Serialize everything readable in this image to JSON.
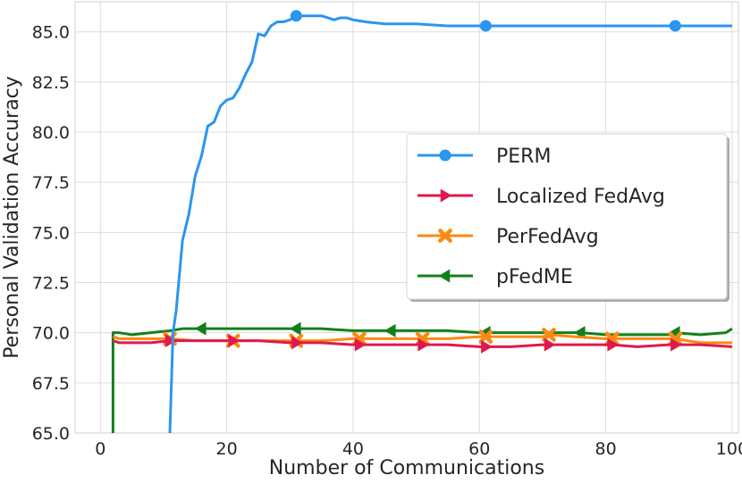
{
  "chart_data": {
    "type": "line",
    "title": "",
    "xlabel": "Number of Communications",
    "ylabel": "Personal Validation Accuracy",
    "xlim": [
      -4,
      101
    ],
    "ylim": [
      65.0,
      86.5
    ],
    "xticks": [
      0,
      20,
      40,
      60,
      80,
      100
    ],
    "yticks": [
      65.0,
      67.5,
      70.0,
      72.5,
      75.0,
      77.5,
      80.0,
      82.5,
      85.0
    ],
    "grid": true,
    "legend_position": "center-right",
    "series": [
      {
        "name": "PERM",
        "color": "#2b95f0",
        "marker": "circle",
        "marker_every": [
          31,
          61,
          91
        ],
        "x": [
          11,
          11.5,
          12,
          13,
          14,
          15,
          16,
          17,
          18,
          19,
          20,
          21,
          22,
          23,
          24,
          25,
          26,
          27,
          28,
          29,
          30,
          31,
          33,
          35,
          36,
          37,
          38,
          39,
          40,
          42,
          45,
          50,
          55,
          60,
          61,
          65,
          70,
          75,
          80,
          85,
          90,
          91,
          95,
          100
        ],
        "y": [
          65.0,
          70.0,
          71.1,
          74.6,
          75.9,
          77.8,
          78.8,
          80.3,
          80.5,
          81.3,
          81.6,
          81.7,
          82.2,
          82.9,
          83.5,
          84.9,
          84.8,
          85.3,
          85.5,
          85.5,
          85.6,
          85.8,
          85.8,
          85.8,
          85.7,
          85.6,
          85.7,
          85.7,
          85.6,
          85.5,
          85.4,
          85.4,
          85.3,
          85.3,
          85.3,
          85.3,
          85.3,
          85.3,
          85.3,
          85.3,
          85.3,
          85.3,
          85.3,
          85.3
        ]
      },
      {
        "name": "Localized FedAvg",
        "color": "#e0194d",
        "marker": "triangle-right",
        "marker_every": [
          11,
          21,
          31,
          41,
          51,
          61,
          71,
          81,
          91
        ],
        "x": [
          2,
          3,
          5,
          8,
          11,
          15,
          20,
          25,
          30,
          35,
          40,
          41,
          45,
          50,
          55,
          60,
          61,
          65,
          70,
          75,
          80,
          81,
          85,
          90,
          95,
          100
        ],
        "y": [
          69.6,
          69.5,
          69.5,
          69.5,
          69.6,
          69.6,
          69.6,
          69.6,
          69.5,
          69.5,
          69.4,
          69.4,
          69.4,
          69.4,
          69.4,
          69.3,
          69.3,
          69.3,
          69.4,
          69.4,
          69.4,
          69.4,
          69.3,
          69.4,
          69.4,
          69.3
        ]
      },
      {
        "name": "PerFedAvg",
        "color": "#fa8a12",
        "marker": "x",
        "marker_every": [
          11,
          21,
          31,
          41,
          51,
          61,
          71,
          81,
          91
        ],
        "x": [
          2,
          3,
          5,
          8,
          11,
          15,
          20,
          21,
          25,
          30,
          31,
          35,
          40,
          41,
          45,
          50,
          51,
          55,
          60,
          61,
          65,
          70,
          71,
          75,
          80,
          81,
          85,
          90,
          91,
          95,
          100
        ],
        "y": [
          69.8,
          69.7,
          69.7,
          69.7,
          69.7,
          69.6,
          69.6,
          69.6,
          69.6,
          69.6,
          69.6,
          69.6,
          69.7,
          69.7,
          69.7,
          69.7,
          69.7,
          69.7,
          69.8,
          69.8,
          69.8,
          69.8,
          69.9,
          69.8,
          69.7,
          69.7,
          69.7,
          69.7,
          69.7,
          69.5,
          69.5
        ]
      },
      {
        "name": "pFedME",
        "color": "#12801a",
        "marker": "triangle-left",
        "marker_every": [
          16,
          31,
          46,
          61,
          76,
          91
        ],
        "x": [
          2,
          2,
          3,
          5,
          8,
          11,
          13,
          16,
          20,
          25,
          30,
          31,
          35,
          40,
          45,
          46,
          50,
          55,
          60,
          61,
          65,
          70,
          75,
          76,
          80,
          85,
          90,
          91,
          95,
          99,
          100
        ],
        "y": [
          65.0,
          70.0,
          70.0,
          69.9,
          70.0,
          70.1,
          70.2,
          70.2,
          70.2,
          70.2,
          70.2,
          70.2,
          70.2,
          70.1,
          70.1,
          70.1,
          70.1,
          70.1,
          70.0,
          70.0,
          70.0,
          70.0,
          70.0,
          70.0,
          69.9,
          69.9,
          69.9,
          70.0,
          69.9,
          70.0,
          70.2
        ]
      }
    ]
  }
}
